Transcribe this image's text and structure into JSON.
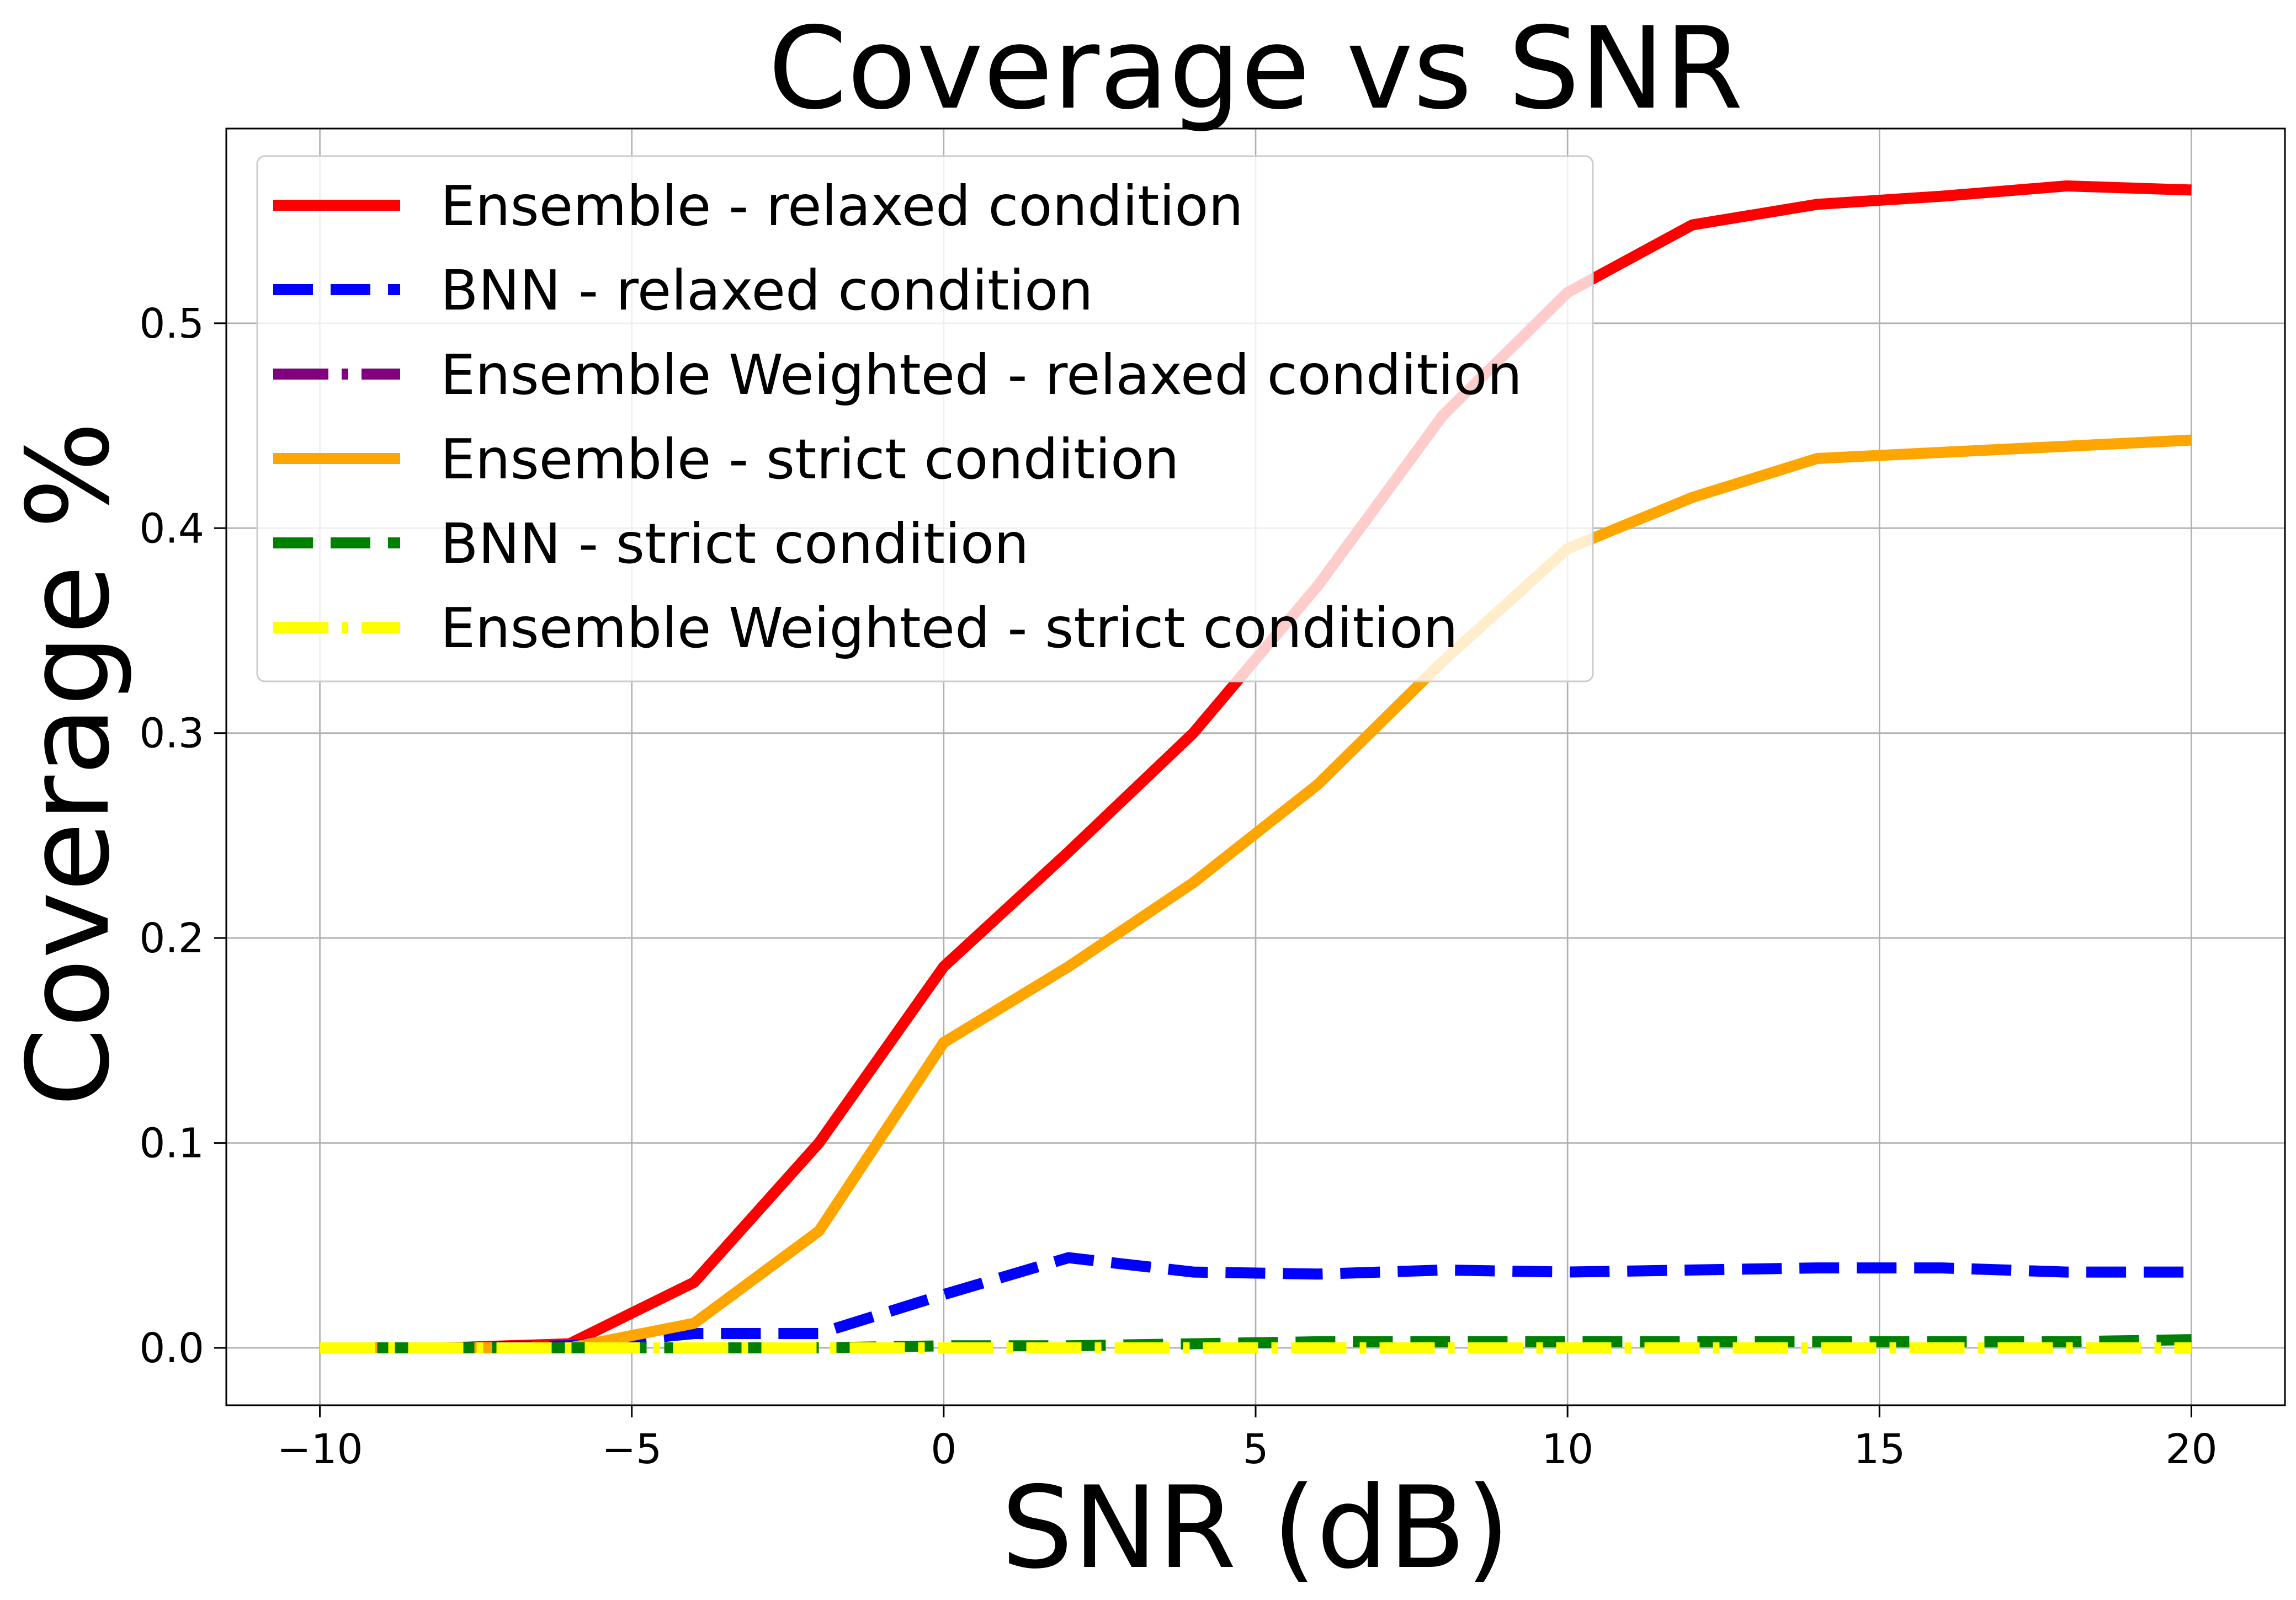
{
  "chart_data": {
    "type": "line",
    "title": "Coverage vs SNR",
    "xlabel": "SNR (dB)",
    "ylabel": "Coverage %",
    "xlim": [
      -11.5,
      21.5
    ],
    "ylim": [
      -0.028,
      0.595
    ],
    "x_ticks": [
      -10,
      -5,
      0,
      5,
      10,
      15,
      20
    ],
    "x_tick_labels": [
      "−10",
      "−5",
      "0",
      "5",
      "10",
      "15",
      "20"
    ],
    "y_ticks": [
      0.0,
      0.1,
      0.2,
      0.3,
      0.4,
      0.5
    ],
    "y_tick_labels": [
      "0.0",
      "0.1",
      "0.2",
      "0.3",
      "0.4",
      "0.5"
    ],
    "grid": true,
    "legend_position": "upper-left",
    "x": [
      -10,
      -8,
      -6,
      -4,
      -2,
      0,
      2,
      4,
      6,
      8,
      10,
      12,
      14,
      16,
      18,
      20
    ],
    "series": [
      {
        "name": "Ensemble - relaxed condition",
        "color": "#ff0000",
        "dash": "solid",
        "values": [
          0.0,
          0.0,
          0.002,
          0.032,
          0.1,
          0.186,
          0.242,
          0.3,
          0.372,
          0.455,
          0.515,
          0.548,
          0.558,
          0.562,
          0.567,
          0.565
        ]
      },
      {
        "name": "BNN - relaxed condition",
        "color": "#0000ff",
        "dash": "dashed",
        "values": [
          0.0,
          0.0,
          0.001,
          0.007,
          0.007,
          0.026,
          0.044,
          0.037,
          0.036,
          0.038,
          0.037,
          0.038,
          0.039,
          0.039,
          0.037,
          0.037
        ]
      },
      {
        "name": "Ensemble Weighted - relaxed condition",
        "color": "#800080",
        "dash": "dashdot",
        "values": [
          0.0,
          0.0,
          0.0,
          0.0,
          0.0,
          0.0,
          0.0,
          0.0,
          0.0,
          0.0,
          0.0,
          0.0,
          0.0,
          0.0,
          0.0,
          0.0
        ]
      },
      {
        "name": "Ensemble - strict condition",
        "color": "#ffa500",
        "dash": "solid",
        "values": [
          0.0,
          0.0,
          0.0,
          0.012,
          0.057,
          0.149,
          0.186,
          0.227,
          0.275,
          0.335,
          0.39,
          0.415,
          0.434,
          0.437,
          0.44,
          0.443
        ]
      },
      {
        "name": "BNN - strict condition",
        "color": "#008000",
        "dash": "dashed",
        "values": [
          0.0,
          0.0,
          0.0,
          0.0,
          0.0,
          0.001,
          0.001,
          0.002,
          0.003,
          0.003,
          0.003,
          0.003,
          0.003,
          0.003,
          0.003,
          0.004
        ]
      },
      {
        "name": "Ensemble Weighted - strict condition",
        "color": "#ffff00",
        "dash": "dashdot",
        "values": [
          0.0,
          0.0,
          0.0,
          0.0,
          0.0,
          0.0,
          0.0,
          0.0,
          0.0,
          0.0,
          0.0,
          0.0,
          0.0,
          0.0,
          0.0,
          0.0
        ]
      }
    ]
  }
}
